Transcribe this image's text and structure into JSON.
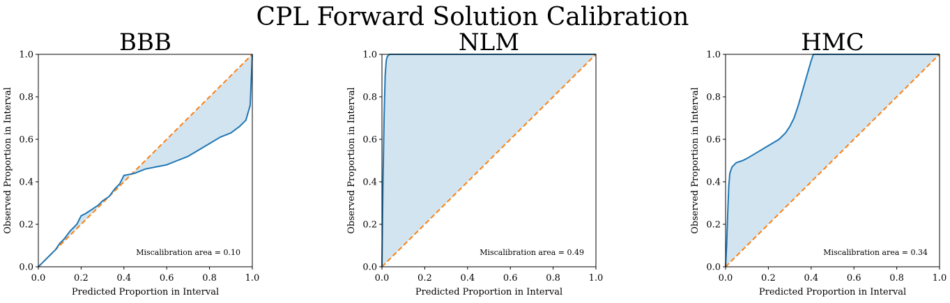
{
  "figure": {
    "suptitle": "CPL Forward Solution Calibration"
  },
  "colors": {
    "curve": "#1f77b4",
    "ideal": "#ff7f0e",
    "fill": "#1f77b4",
    "fill_opacity": 0.2
  },
  "chart_data": [
    {
      "type": "line",
      "title": "BBB",
      "xlabel": "Predicted Proportion in Interval",
      "ylabel": "Observed Proportion in Interval",
      "xlim": [
        0,
        1
      ],
      "ylim": [
        0,
        1
      ],
      "xticks": [
        "0.0",
        "0.2",
        "0.4",
        "0.6",
        "0.8",
        "1.0"
      ],
      "yticks": [
        "0.0",
        "0.2",
        "0.4",
        "0.6",
        "0.8",
        "1.0"
      ],
      "annotation": "Miscalibration area = 0.10",
      "ideal_line": {
        "x": [
          0,
          1
        ],
        "y": [
          0,
          1
        ]
      },
      "curve": {
        "x": [
          0,
          0.02,
          0.05,
          0.08,
          0.1,
          0.12,
          0.15,
          0.18,
          0.2,
          0.22,
          0.25,
          0.28,
          0.3,
          0.33,
          0.36,
          0.38,
          0.4,
          0.45,
          0.5,
          0.55,
          0.6,
          0.65,
          0.7,
          0.75,
          0.8,
          0.85,
          0.9,
          0.94,
          0.97,
          0.99,
          1.0
        ],
        "y": [
          0,
          0.02,
          0.05,
          0.08,
          0.11,
          0.13,
          0.17,
          0.2,
          0.24,
          0.25,
          0.27,
          0.29,
          0.31,
          0.33,
          0.37,
          0.39,
          0.43,
          0.44,
          0.46,
          0.47,
          0.48,
          0.5,
          0.52,
          0.55,
          0.58,
          0.61,
          0.63,
          0.66,
          0.69,
          0.76,
          1.0
        ]
      }
    },
    {
      "type": "line",
      "title": "NLM",
      "xlabel": "Predicted Proportion in Interval",
      "ylabel": "Observed Proportion in Interval",
      "xlim": [
        0,
        1
      ],
      "ylim": [
        0,
        1
      ],
      "xticks": [
        "0.0",
        "0.2",
        "0.4",
        "0.6",
        "0.8",
        "1.0"
      ],
      "yticks": [
        "0.0",
        "0.2",
        "0.4",
        "0.6",
        "0.8",
        "1.0"
      ],
      "annotation": "Miscalibration area = 0.49",
      "ideal_line": {
        "x": [
          0,
          1
        ],
        "y": [
          0,
          1
        ]
      },
      "curve": {
        "x": [
          0,
          0.005,
          0.01,
          0.015,
          0.02,
          0.025,
          0.035,
          1.0
        ],
        "y": [
          0,
          0.4,
          0.7,
          0.9,
          0.97,
          0.99,
          1.0,
          1.0
        ]
      }
    },
    {
      "type": "line",
      "title": "HMC",
      "xlabel": "Predicted Proportion in Interval",
      "ylabel": "Observed Proportion in Interval",
      "xlim": [
        0,
        1
      ],
      "ylim": [
        0,
        1
      ],
      "xticks": [
        "0.0",
        "0.2",
        "0.4",
        "0.6",
        "0.8",
        "1.0"
      ],
      "yticks": [
        "0.0",
        "0.2",
        "0.4",
        "0.6",
        "0.8",
        "1.0"
      ],
      "annotation": "Miscalibration area = 0.34",
      "ideal_line": {
        "x": [
          0,
          1
        ],
        "y": [
          0,
          1
        ]
      },
      "curve": {
        "x": [
          0,
          0.005,
          0.01,
          0.015,
          0.02,
          0.03,
          0.05,
          0.08,
          0.1,
          0.15,
          0.2,
          0.25,
          0.28,
          0.3,
          0.32,
          0.34,
          0.36,
          0.38,
          0.4,
          0.41,
          0.42,
          1.0
        ],
        "y": [
          0,
          0.1,
          0.25,
          0.38,
          0.44,
          0.47,
          0.49,
          0.5,
          0.51,
          0.54,
          0.57,
          0.6,
          0.63,
          0.66,
          0.7,
          0.76,
          0.83,
          0.9,
          0.97,
          1.0,
          1.0,
          1.0
        ]
      }
    }
  ]
}
